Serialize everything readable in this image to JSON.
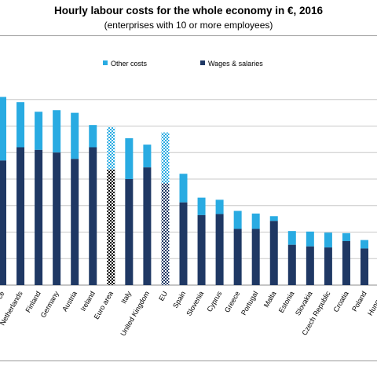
{
  "title": "Hourly labour costs for the whole economy in €, 2016",
  "subtitle": "(enterprises with 10 or more employees)",
  "chart_data": {
    "type": "bar",
    "stacked": true,
    "categories": [
      "France",
      "Netherlands",
      "Finland",
      "Germany",
      "Austria",
      "Ireland",
      "Euro area",
      "Italy",
      "United Kingdom",
      "EU",
      "Spain",
      "Slovenia",
      "Cyprus",
      "Greece",
      "Portugal",
      "Malta",
      "Estonia",
      "Slovakia",
      "Czech Republic",
      "Croatia",
      "Poland",
      "Hungary"
    ],
    "visible_labels": [
      "ce",
      "Netherlands",
      "Finland",
      "Germany",
      "Austria",
      "Ireland",
      "Euro area",
      "Italy",
      "United Kingdom",
      "EU",
      "Spain",
      "Slovenia",
      "Cyprus",
      "Greece",
      "Portugal",
      "Malta",
      "Estonia",
      "Slovakia",
      "Czech Republic",
      "Croatia",
      "Poland",
      "Hungary"
    ],
    "highlighted": [
      "Euro area",
      "EU"
    ],
    "series": [
      {
        "name": "Wages & salaries",
        "color": "#1f3864",
        "values": [
          23.5,
          26.0,
          25.5,
          25.0,
          23.8,
          26.0,
          21.8,
          20.0,
          22.2,
          19.2,
          15.6,
          13.2,
          13.4,
          10.6,
          10.6,
          12.1,
          7.6,
          7.3,
          7.1,
          8.3,
          6.9,
          6.6
        ]
      },
      {
        "name": "Other costs",
        "color": "#29abe2",
        "values": [
          12.0,
          8.5,
          7.2,
          8.0,
          8.7,
          4.2,
          8.0,
          7.7,
          4.3,
          9.6,
          5.4,
          3.3,
          2.7,
          3.4,
          2.9,
          0.9,
          2.6,
          2.8,
          2.8,
          1.5,
          1.6,
          1.8
        ]
      }
    ],
    "grid": true,
    "legend_position": "top-right"
  }
}
